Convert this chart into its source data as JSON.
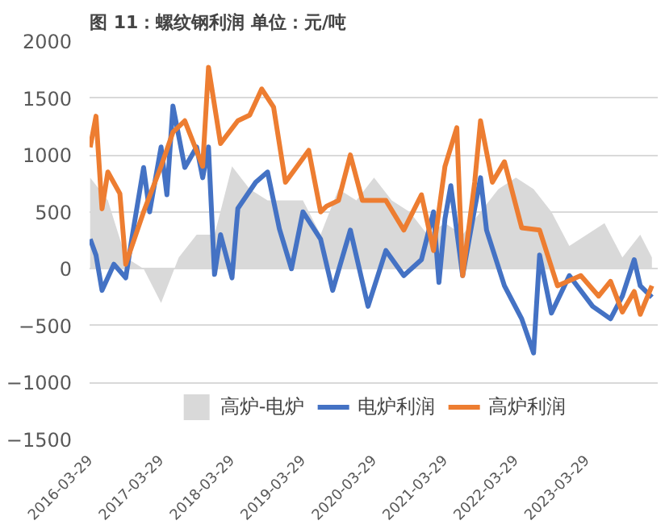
{
  "chart_data": {
    "type": "line",
    "title": "图 11：螺纹钢利润 单位：元/吨",
    "xlim": [
      "2016-03-29",
      "2024-03-31"
    ],
    "xticks": [
      "2016-03-29",
      "2017-03-29",
      "2018-03-29",
      "2019-03-29",
      "2020-03-29",
      "2021-03-29",
      "2022-03-29",
      "2023-03-29"
    ],
    "ylim": [
      -1500,
      2000
    ],
    "yticks": [
      -1500,
      -1000,
      -500,
      0,
      500,
      1000,
      1500,
      2000
    ],
    "grid": "y",
    "legend": "bottom",
    "series": [
      {
        "name": "高炉-电炉",
        "type": "area",
        "color": "#d9d9d9",
        "x": [
          "2016-04",
          "2016-07",
          "2016-10",
          "2017-01",
          "2017-04",
          "2017-07",
          "2017-10",
          "2018-01",
          "2018-04",
          "2018-07",
          "2018-10",
          "2019-01",
          "2019-04",
          "2019-07",
          "2019-10",
          "2020-01",
          "2020-04",
          "2020-07",
          "2020-10",
          "2021-01",
          "2021-04",
          "2021-07",
          "2021-10",
          "2022-01",
          "2022-04",
          "2022-07",
          "2022-10",
          "2023-01",
          "2023-04",
          "2023-07",
          "2023-10",
          "2024-01",
          "2024-03"
        ],
        "values": [
          800,
          600,
          100,
          0,
          -300,
          100,
          300,
          300,
          900,
          700,
          600,
          600,
          600,
          300,
          700,
          600,
          800,
          600,
          500,
          300,
          400,
          300,
          500,
          700,
          800,
          700,
          500,
          200,
          300,
          400,
          100,
          300,
          100
        ]
      },
      {
        "name": "电炉利润",
        "color": "#4472c4",
        "x": [
          "2016-04",
          "2016-05",
          "2016-06",
          "2016-08",
          "2016-10",
          "2016-11",
          "2017-01",
          "2017-02",
          "2017-04",
          "2017-05",
          "2017-06",
          "2017-08",
          "2017-10",
          "2017-11",
          "2017-12",
          "2018-01",
          "2018-02",
          "2018-04",
          "2018-05",
          "2018-08",
          "2018-10",
          "2018-12",
          "2019-02",
          "2019-04",
          "2019-07",
          "2019-09",
          "2019-12",
          "2020-03",
          "2020-06",
          "2020-09",
          "2020-12",
          "2021-02",
          "2021-03",
          "2021-04",
          "2021-05",
          "2021-07",
          "2021-09",
          "2021-10",
          "2021-11",
          "2022-02",
          "2022-05",
          "2022-07",
          "2022-08",
          "2022-10",
          "2023-01",
          "2023-05",
          "2023-08",
          "2023-10",
          "2023-12",
          "2024-01",
          "2024-03"
        ],
        "values": [
          260,
          120,
          -190,
          40,
          -80,
          260,
          890,
          500,
          1070,
          650,
          1430,
          890,
          1070,
          800,
          1070,
          -50,
          300,
          -80,
          530,
          760,
          850,
          350,
          0,
          500,
          260,
          -190,
          340,
          -330,
          160,
          -60,
          80,
          500,
          -120,
          440,
          730,
          -60,
          530,
          800,
          340,
          -150,
          -440,
          -740,
          120,
          -390,
          -60,
          -330,
          -440,
          -240,
          80,
          -150,
          -250
        ]
      },
      {
        "name": "高炉利润",
        "color": "#ed7d31",
        "x": [
          "2016-04",
          "2016-05",
          "2016-06",
          "2016-07",
          "2016-09",
          "2016-10",
          "2017-01",
          "2017-04",
          "2017-06",
          "2017-08",
          "2017-11",
          "2017-12",
          "2018-02",
          "2018-05",
          "2018-07",
          "2018-09",
          "2018-11",
          "2019-01",
          "2019-05",
          "2019-07",
          "2019-08",
          "2019-10",
          "2019-12",
          "2020-02",
          "2020-06",
          "2020-09",
          "2020-12",
          "2021-02",
          "2021-04",
          "2021-06",
          "2021-07",
          "2021-09",
          "2021-10",
          "2021-12",
          "2022-02",
          "2022-05",
          "2022-08",
          "2022-11",
          "2023-03",
          "2023-06",
          "2023-08",
          "2023-10",
          "2023-12",
          "2024-01",
          "2024-03"
        ],
        "values": [
          1067,
          1340,
          527,
          850,
          660,
          40,
          500,
          900,
          1200,
          1300,
          900,
          1770,
          1100,
          1300,
          1350,
          1580,
          1420,
          760,
          1040,
          500,
          550,
          600,
          1000,
          600,
          600,
          340,
          650,
          160,
          900,
          1240,
          -60,
          760,
          1300,
          760,
          940,
          360,
          340,
          -150,
          -60,
          -240,
          -110,
          -380,
          -200,
          -400,
          -150
        ]
      }
    ]
  }
}
